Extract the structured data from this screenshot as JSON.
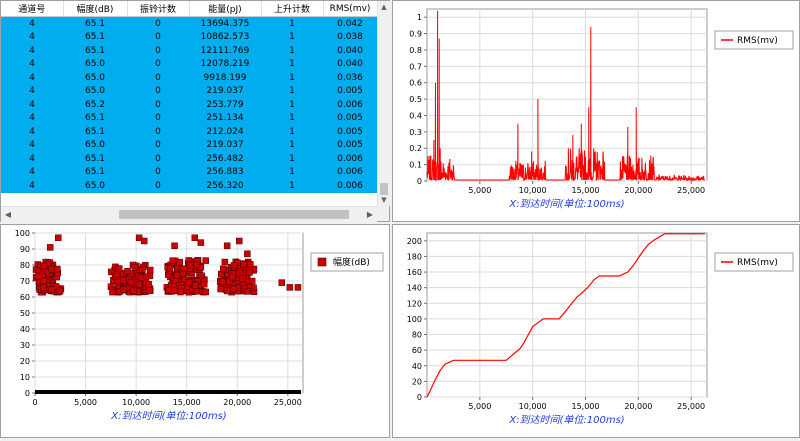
{
  "table": {
    "columns": [
      "通道号",
      "幅度(dB)",
      "振铃计数",
      "能量(pJ)",
      "上升计数",
      "RMS(mv)"
    ],
    "rows": [
      [
        "4",
        "65.1",
        "0",
        "13694.375",
        "1",
        "0.042"
      ],
      [
        "4",
        "65.1",
        "0",
        "10862.573",
        "1",
        "0.038"
      ],
      [
        "4",
        "65.1",
        "0",
        "12111.769",
        "1",
        "0.040"
      ],
      [
        "4",
        "65.0",
        "0",
        "12078.219",
        "1",
        "0.040"
      ],
      [
        "4",
        "65.0",
        "0",
        "9918.199",
        "1",
        "0.036"
      ],
      [
        "4",
        "65.0",
        "0",
        "219.037",
        "1",
        "0.005"
      ],
      [
        "4",
        "65.2",
        "0",
        "253.779",
        "1",
        "0.006"
      ],
      [
        "4",
        "65.1",
        "0",
        "251.134",
        "1",
        "0.005"
      ],
      [
        "4",
        "65.1",
        "0",
        "212.024",
        "1",
        "0.005"
      ],
      [
        "4",
        "65.0",
        "0",
        "219.037",
        "1",
        "0.005"
      ],
      [
        "4",
        "65.1",
        "0",
        "256.482",
        "1",
        "0.006"
      ],
      [
        "4",
        "65.1",
        "0",
        "256.883",
        "1",
        "0.006"
      ],
      [
        "4",
        "65.0",
        "0",
        "256.320",
        "1",
        "0.006"
      ]
    ],
    "scroll_up_glyph": "▲",
    "scroll_down_glyph": "▼",
    "scroll_left_glyph": "◀",
    "scroll_right_glyph": "▶"
  },
  "colors": {
    "series": "#ff0000",
    "selection": "#00aeef",
    "axis_title": "#1f3ee0",
    "marker": "#cc0000"
  },
  "chart_data": [
    {
      "type": "line",
      "xlabel": "X:到达时间(单位:100ms)",
      "ylabel": "",
      "xlim": [
        0,
        26500
      ],
      "ylim": [
        0,
        1.05
      ],
      "xticks": [
        "5,000",
        "10,000",
        "15,000",
        "20,000",
        "25,000"
      ],
      "yticks": [
        "0",
        "0.1",
        "0.2",
        "0.3",
        "0.4",
        "0.5",
        "0.6",
        "0.7",
        "0.8",
        "0.9",
        "1"
      ],
      "legend_position": "top-right",
      "series": [
        {
          "name": "RMS(mv)",
          "color": "#ff0000"
        }
      ],
      "baseline": 0.006,
      "bursts": [
        {
          "x_start": 0,
          "x_end": 2600,
          "peak": 0.15
        },
        {
          "x_start": 7800,
          "x_end": 11300,
          "peak": 0.12
        },
        {
          "x_start": 13100,
          "x_end": 16800,
          "peak": 0.2
        },
        {
          "x_start": 18300,
          "x_end": 21500,
          "peak": 0.15
        },
        {
          "x_start": 21700,
          "x_end": 26200,
          "peak": 0.03
        }
      ],
      "spikes": [
        {
          "x": 650,
          "y": 0.25
        },
        {
          "x": 800,
          "y": 0.6
        },
        {
          "x": 1000,
          "y": 1.04
        },
        {
          "x": 1150,
          "y": 0.87
        },
        {
          "x": 1250,
          "y": 0.2
        },
        {
          "x": 8600,
          "y": 0.35
        },
        {
          "x": 9900,
          "y": 0.18
        },
        {
          "x": 10500,
          "y": 0.5
        },
        {
          "x": 13800,
          "y": 0.28
        },
        {
          "x": 14600,
          "y": 0.35
        },
        {
          "x": 15300,
          "y": 0.45
        },
        {
          "x": 15500,
          "y": 0.94
        },
        {
          "x": 19000,
          "y": 0.33
        },
        {
          "x": 19800,
          "y": 0.45
        }
      ]
    },
    {
      "type": "scatter",
      "xlabel": "X:到达时间(单位:100ms)",
      "ylabel": "",
      "xlim": [
        0,
        26500
      ],
      "ylim": [
        0,
        100
      ],
      "xticks": [
        "0",
        "5,000",
        "10,000",
        "15,000",
        "20,000",
        "25,000"
      ],
      "yticks": [
        "0",
        "10",
        "20",
        "30",
        "40",
        "50",
        "60",
        "70",
        "80",
        "90",
        "100"
      ],
      "legend_position": "top-right",
      "series": [
        {
          "name": "幅度(dB)",
          "color": "#cc0000"
        }
      ],
      "clusters": [
        {
          "x_start": 0,
          "x_end": 2600,
          "y_min": 63,
          "y_max": 82,
          "count": 90
        },
        {
          "x_start": 7500,
          "x_end": 11400,
          "y_min": 63,
          "y_max": 80,
          "count": 100
        },
        {
          "x_start": 13000,
          "x_end": 16900,
          "y_min": 63,
          "y_max": 84,
          "count": 110
        },
        {
          "x_start": 18300,
          "x_end": 21700,
          "y_min": 63,
          "y_max": 82,
          "count": 100
        }
      ],
      "outliers": [
        {
          "x": 1500,
          "y": 91
        },
        {
          "x": 2300,
          "y": 97
        },
        {
          "x": 10300,
          "y": 97
        },
        {
          "x": 10800,
          "y": 95
        },
        {
          "x": 13800,
          "y": 92
        },
        {
          "x": 15800,
          "y": 97
        },
        {
          "x": 16400,
          "y": 94
        },
        {
          "x": 19000,
          "y": 92
        },
        {
          "x": 20200,
          "y": 95
        },
        {
          "x": 21000,
          "y": 87
        },
        {
          "x": 24400,
          "y": 69
        },
        {
          "x": 25200,
          "y": 66
        },
        {
          "x": 26000,
          "y": 66
        }
      ],
      "zero_line": {
        "x_start": 0,
        "x_end": 26300,
        "y": 0
      }
    },
    {
      "type": "line",
      "xlabel": "X:到达时间(单位:100ms)",
      "ylabel": "",
      "xlim": [
        0,
        26500
      ],
      "ylim": [
        0,
        210
      ],
      "xticks": [
        "5,000",
        "10,000",
        "15,000",
        "20,000",
        "25,000"
      ],
      "yticks": [
        "0",
        "20",
        "40",
        "60",
        "80",
        "100",
        "120",
        "140",
        "160",
        "180",
        "200"
      ],
      "legend_position": "top-right",
      "series": [
        {
          "name": "RMS(mv)",
          "color": "#ff0000",
          "x": [
            0,
            300,
            700,
            1200,
            1700,
            2500,
            3000,
            7500,
            8200,
            8800,
            9200,
            9600,
            10000,
            10500,
            11000,
            11800,
            12500,
            13000,
            13600,
            14200,
            14800,
            15200,
            15800,
            16300,
            17000,
            18200,
            19000,
            19500,
            20000,
            20500,
            21000,
            21500,
            22000,
            22500,
            26300
          ],
          "y": [
            0,
            8,
            20,
            33,
            42,
            47,
            47,
            47,
            55,
            62,
            70,
            80,
            90,
            95,
            100,
            100,
            100,
            108,
            118,
            128,
            135,
            140,
            150,
            155,
            155,
            155,
            160,
            168,
            178,
            188,
            196,
            201,
            205,
            209,
            209
          ]
        }
      ]
    }
  ]
}
